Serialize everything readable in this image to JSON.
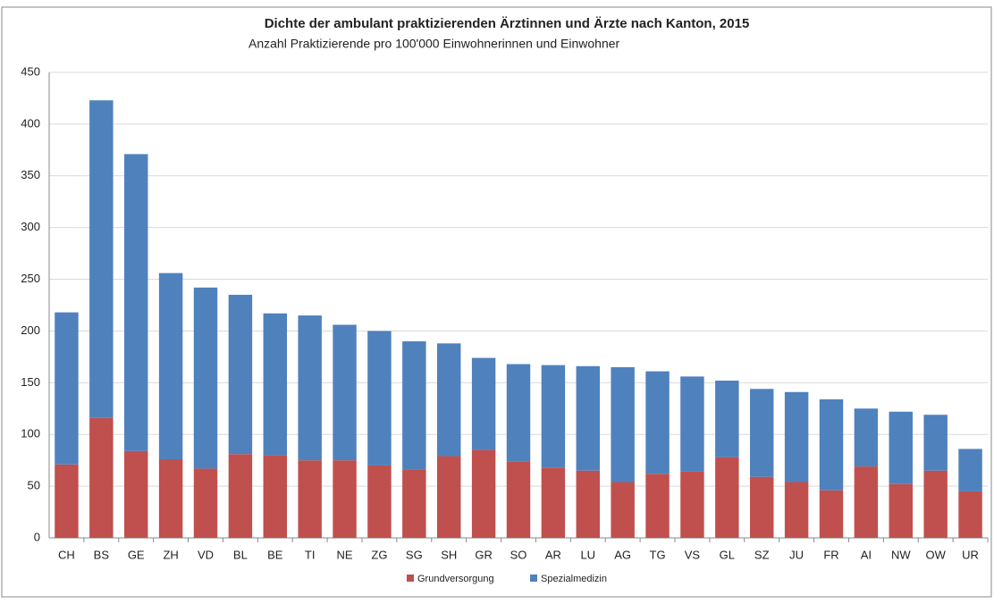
{
  "chart_data": {
    "type": "stacked-bar",
    "title": "Dichte der ambulant praktizierenden Ärztinnen und Ärzte nach Kanton, 2015",
    "subtitle": "Anzahl Praktizierende pro 100'000 Einwohnerinnen und Einwohner",
    "categories": [
      "CH",
      "BS",
      "GE",
      "ZH",
      "VD",
      "BL",
      "BE",
      "TI",
      "NE",
      "ZG",
      "SG",
      "SH",
      "GR",
      "SO",
      "AR",
      "LU",
      "AG",
      "TG",
      "VS",
      "GL",
      "SZ",
      "JU",
      "FR",
      "AI",
      "NW",
      "OW",
      "UR"
    ],
    "series": [
      {
        "name": "Grundversorgung",
        "color": "#c0504d",
        "values": [
          71,
          116,
          84,
          76,
          67,
          81,
          80,
          75,
          75,
          70,
          66,
          79,
          85,
          74,
          68,
          65,
          54,
          62,
          64,
          78,
          59,
          54,
          46,
          69,
          52,
          65,
          45
        ]
      },
      {
        "name": "Spezialmedizin",
        "color": "#4f81bd",
        "values": [
          147,
          307,
          287,
          180,
          175,
          154,
          137,
          140,
          131,
          130,
          124,
          109,
          89,
          94,
          99,
          101,
          111,
          99,
          92,
          74,
          85,
          87,
          88,
          56,
          70,
          54,
          41
        ]
      }
    ],
    "ylim": [
      0,
      450
    ],
    "yticks": [
      0,
      50,
      100,
      150,
      200,
      250,
      300,
      350,
      400,
      450
    ],
    "grid": true,
    "legend": "bottom"
  }
}
